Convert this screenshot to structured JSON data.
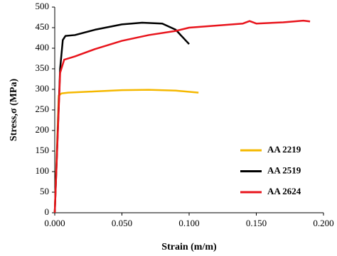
{
  "chart_data": {
    "type": "line",
    "xlabel": "Strain (m/m)",
    "ylabel": "Stress,σ (MPa)",
    "xlim": [
      0,
      0.2
    ],
    "ylim": [
      0,
      500
    ],
    "xticks": [
      {
        "value": 0,
        "label": "0.000"
      },
      {
        "value": 0.05,
        "label": "0.050"
      },
      {
        "value": 0.1,
        "label": "0.100"
      },
      {
        "value": 0.15,
        "label": "0.150"
      },
      {
        "value": 0.2,
        "label": "0.200"
      }
    ],
    "yticks": [
      0,
      50,
      100,
      150,
      200,
      250,
      300,
      350,
      400,
      450,
      500
    ],
    "legend": "lower right",
    "series": [
      {
        "name": "AA 2219",
        "color": "#f5b800",
        "x": [
          0,
          0.003,
          0.005,
          0.01,
          0.03,
          0.05,
          0.07,
          0.09,
          0.107
        ],
        "values": [
          0,
          285,
          290,
          292,
          295,
          298,
          299,
          297,
          292
        ]
      },
      {
        "name": "AA 2519",
        "color": "#000000",
        "x": [
          0,
          0.004,
          0.006,
          0.008,
          0.015,
          0.03,
          0.05,
          0.065,
          0.08,
          0.09,
          0.1
        ],
        "values": [
          0,
          350,
          420,
          430,
          432,
          445,
          458,
          462,
          460,
          445,
          410
        ]
      },
      {
        "name": "AA 2624",
        "color": "#e8141c",
        "x": [
          0,
          0.004,
          0.007,
          0.015,
          0.03,
          0.05,
          0.07,
          0.09,
          0.1,
          0.12,
          0.14,
          0.145,
          0.15,
          0.17,
          0.185,
          0.19
        ],
        "values": [
          0,
          340,
          372,
          380,
          398,
          418,
          432,
          442,
          450,
          455,
          460,
          466,
          460,
          463,
          467,
          465
        ]
      }
    ]
  }
}
